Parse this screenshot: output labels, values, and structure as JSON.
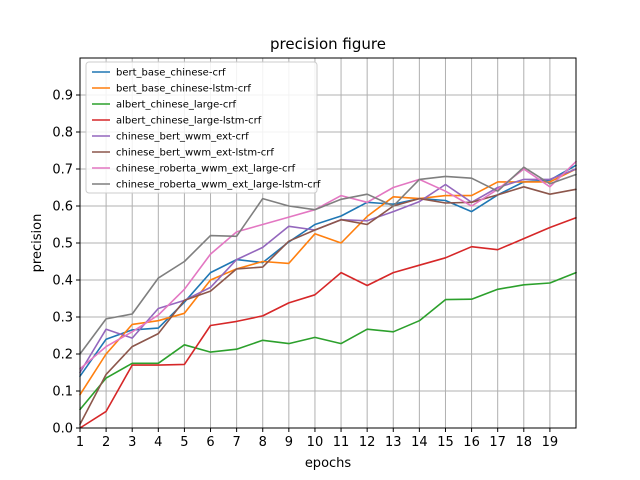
{
  "chart_data": {
    "type": "line",
    "title": "precision figure",
    "xlabel": "epochs",
    "ylabel": "precision",
    "xlim": [
      1,
      20
    ],
    "ylim": [
      0.0,
      1.0
    ],
    "x_ticks": [
      1,
      2,
      3,
      4,
      5,
      6,
      7,
      8,
      9,
      10,
      11,
      12,
      13,
      14,
      15,
      16,
      17,
      18,
      19
    ],
    "y_ticks": [
      0.0,
      0.1,
      0.2,
      0.3,
      0.4,
      0.5,
      0.6,
      0.7,
      0.8,
      0.9
    ],
    "y_tick_labels": [
      "0.0",
      "0.1",
      "0.2",
      "0.3",
      "0.4",
      "0.5",
      "0.6",
      "0.7",
      "0.8",
      "0.9"
    ],
    "grid": true,
    "legend_position": "upper-left",
    "x": [
      1,
      2,
      3,
      4,
      5,
      6,
      7,
      8,
      9,
      10,
      11,
      12,
      13,
      14,
      15,
      16,
      17,
      18,
      19,
      20
    ],
    "series": [
      {
        "name": "bert_base_chinese-crf",
        "color": "#1f77b4",
        "values": [
          0.14,
          0.24,
          0.265,
          0.27,
          0.34,
          0.42,
          0.455,
          0.447,
          0.503,
          0.55,
          0.573,
          0.61,
          0.605,
          0.62,
          0.615,
          0.585,
          0.63,
          0.665,
          0.67,
          0.71
        ]
      },
      {
        "name": "bert_base_chinese-lstm-crf",
        "color": "#ff7f0e",
        "values": [
          0.09,
          0.2,
          0.28,
          0.29,
          0.31,
          0.4,
          0.43,
          0.45,
          0.445,
          0.525,
          0.5,
          0.572,
          0.625,
          0.62,
          0.628,
          0.628,
          0.665,
          0.665,
          0.665,
          0.7
        ]
      },
      {
        "name": "albert_chinese_large-crf",
        "color": "#2ca02c",
        "values": [
          0.05,
          0.135,
          0.175,
          0.175,
          0.225,
          0.205,
          0.213,
          0.237,
          0.228,
          0.245,
          0.228,
          0.267,
          0.26,
          0.29,
          0.347,
          0.348,
          0.375,
          0.387,
          0.392,
          0.42
        ]
      },
      {
        "name": "albert_chinese_large-lstm-crf",
        "color": "#d62728",
        "values": [
          0.0,
          0.045,
          0.17,
          0.17,
          0.172,
          0.277,
          0.288,
          0.303,
          0.338,
          0.36,
          0.42,
          0.385,
          0.42,
          0.44,
          0.46,
          0.49,
          0.482,
          0.512,
          0.542,
          0.568
        ]
      },
      {
        "name": "chinese_bert_wwm_ext-crf",
        "color": "#9467bd",
        "values": [
          0.15,
          0.267,
          0.243,
          0.323,
          0.345,
          0.38,
          0.455,
          0.488,
          0.545,
          0.535,
          0.563,
          0.56,
          0.585,
          0.612,
          0.658,
          0.61,
          0.65,
          0.672,
          0.672,
          0.7
        ]
      },
      {
        "name": "chinese_bert_wwm_ext-lstm-crf",
        "color": "#8c564b",
        "values": [
          0.01,
          0.145,
          0.22,
          0.255,
          0.345,
          0.37,
          0.43,
          0.435,
          0.505,
          0.535,
          0.563,
          0.55,
          0.6,
          0.62,
          0.608,
          0.61,
          0.63,
          0.652,
          0.632,
          0.645
        ]
      },
      {
        "name": "chinese_roberta_wwm_ext_large-crf",
        "color": "#e377c2",
        "values": [
          0.16,
          0.22,
          0.26,
          0.305,
          0.375,
          0.47,
          0.53,
          0.55,
          0.57,
          0.59,
          0.628,
          0.61,
          0.65,
          0.672,
          0.64,
          0.6,
          0.645,
          0.7,
          0.652,
          0.72
        ]
      },
      {
        "name": "chinese_roberta_wwm_ext_large-lstm-crf",
        "color": "#7f7f7f",
        "values": [
          0.2,
          0.295,
          0.308,
          0.405,
          0.45,
          0.52,
          0.518,
          0.62,
          0.6,
          0.59,
          0.618,
          0.632,
          0.6,
          0.672,
          0.68,
          0.675,
          0.64,
          0.705,
          0.66,
          0.685
        ]
      }
    ]
  }
}
